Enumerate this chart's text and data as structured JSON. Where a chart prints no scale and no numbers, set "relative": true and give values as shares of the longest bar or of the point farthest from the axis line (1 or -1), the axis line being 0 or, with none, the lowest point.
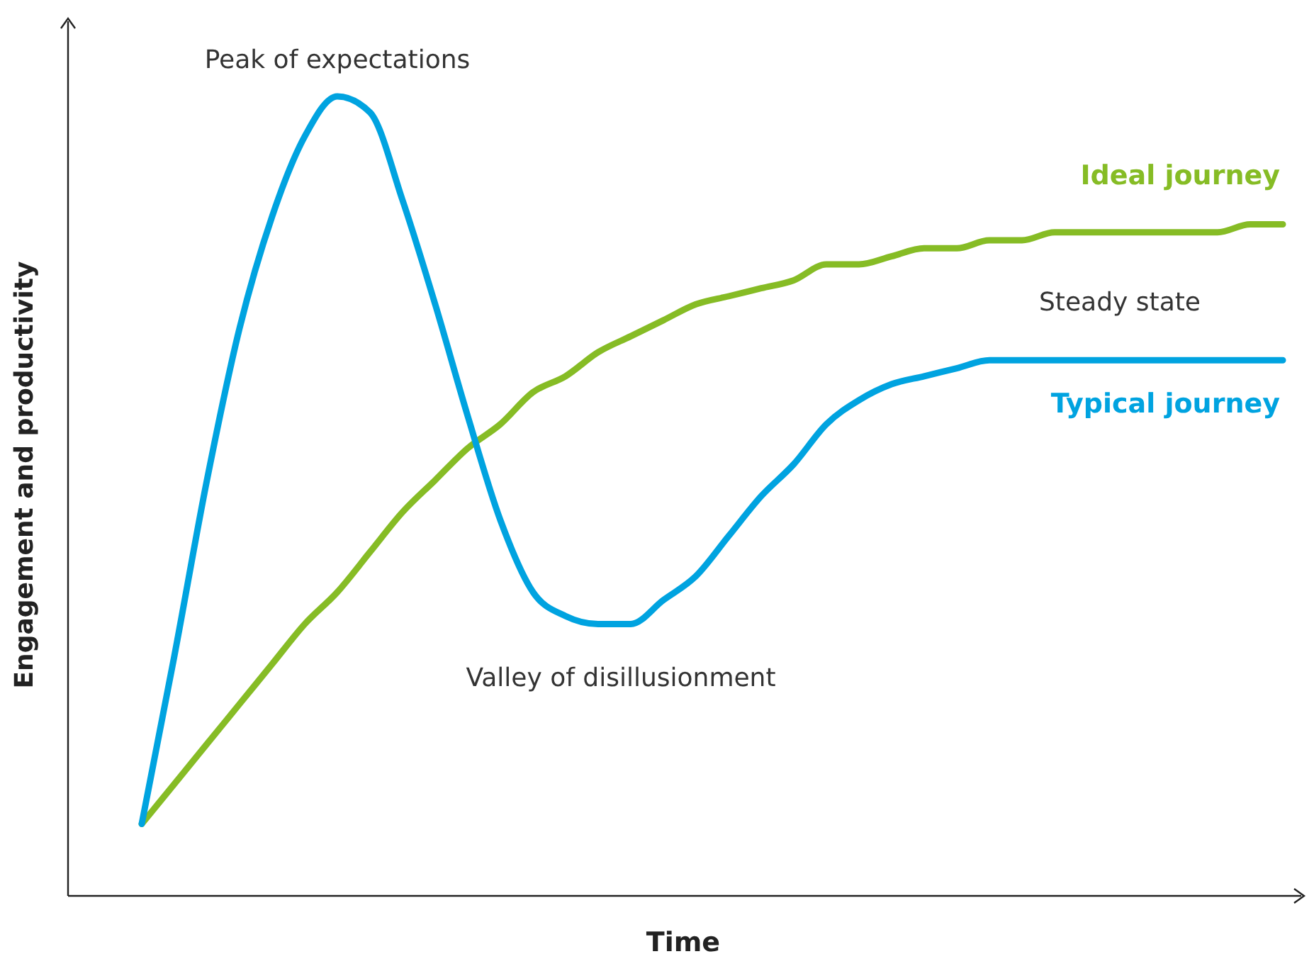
{
  "chart_data": {
    "type": "line",
    "relative": true,
    "xlabel": "Time",
    "ylabel": "Engagement and productivity",
    "annotations": [
      "Peak of expectations",
      "Steady state",
      "Valley of disillusionment"
    ],
    "categories": [
      null,
      null,
      null,
      null,
      null,
      null,
      null,
      null,
      null,
      null,
      null,
      null,
      null,
      null,
      null,
      null,
      null,
      null,
      null,
      null,
      null,
      null,
      null,
      null,
      null,
      null,
      null,
      null,
      null,
      null,
      null,
      null,
      null,
      null,
      null,
      null
    ],
    "series": [
      {
        "name": "Ideal journey",
        "color": "#86bc25",
        "values": [
          0.09,
          0.14,
          0.19,
          0.24,
          0.29,
          0.34,
          0.38,
          0.43,
          0.48,
          0.52,
          0.56,
          0.59,
          0.63,
          0.65,
          0.68,
          0.7,
          0.72,
          0.74,
          0.75,
          0.76,
          0.77,
          0.79,
          0.79,
          0.8,
          0.81,
          0.81,
          0.82,
          0.82,
          0.83,
          0.83,
          0.83,
          0.83,
          0.83,
          0.83,
          0.84,
          0.84
        ]
      },
      {
        "name": "Typical journey",
        "color": "#00a3e0",
        "values": [
          0.09,
          0.3,
          0.52,
          0.71,
          0.85,
          0.95,
          1,
          0.98,
          0.87,
          0.74,
          0.6,
          0.47,
          0.38,
          0.35,
          0.34,
          0.34,
          0.37,
          0.4,
          0.45,
          0.5,
          0.54,
          0.59,
          0.62,
          0.64,
          0.65,
          0.66,
          0.67,
          0.67,
          0.67,
          0.67,
          0.67,
          0.67,
          0.67,
          0.67,
          0.67,
          0.67
        ]
      }
    ]
  }
}
